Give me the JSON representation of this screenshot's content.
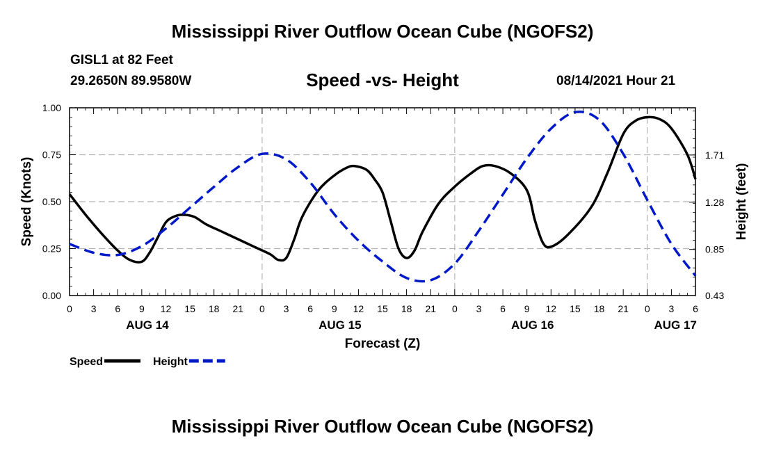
{
  "page": {
    "title_top": "Mississippi River Outflow Ocean Cube (NGOFS2)",
    "title_bottom": "Mississippi River Outflow Ocean Cube (NGOFS2)",
    "station": "GISL1 at 82 Feet",
    "coords": "29.2650N  89.9580W",
    "subtitle": "Speed -vs- Height",
    "datetime": "08/14/2021 Hour 21"
  },
  "chart_data": {
    "type": "line",
    "title": "Speed -vs- Height",
    "xlabel": "Forecast (Z)",
    "ylabel": "Speed (Knots)",
    "y2label": "Height (feet)",
    "xlim": [
      0,
      78
    ],
    "ylim": [
      0,
      1
    ],
    "y2lim": [
      0.43,
      2.14
    ],
    "x_tick_values": [
      0,
      3,
      6,
      9,
      12,
      15,
      18,
      21,
      24,
      27,
      30,
      33,
      36,
      39,
      42,
      45,
      48,
      51,
      54,
      57,
      60,
      63,
      66,
      69,
      72,
      75,
      78
    ],
    "x_tick_labels": [
      "0",
      "3",
      "6",
      "9",
      "12",
      "15",
      "18",
      "21",
      "0",
      "3",
      "6",
      "9",
      "12",
      "15",
      "18",
      "21",
      "0",
      "3",
      "6",
      "9",
      "12",
      "15",
      "18",
      "21",
      "0",
      "3",
      "6"
    ],
    "date_labels": [
      {
        "label": "AUG 14",
        "x": 9.7
      },
      {
        "label": "AUG 15",
        "x": 33.7
      },
      {
        "label": "AUG 16",
        "x": 57.7
      },
      {
        "label": "AUG 17",
        "x": 75.5
      }
    ],
    "y_ticks": [
      0.0,
      0.25,
      0.5,
      0.75,
      1.0
    ],
    "y_tick_labels": [
      "0.00",
      "0.25",
      "0.50",
      "0.75",
      "1.00"
    ],
    "y2_ticks": [
      0.43,
      0.85,
      1.28,
      1.71
    ],
    "y2_tick_labels": [
      "0.43",
      "0.85",
      "1.28",
      "1.71"
    ],
    "grid": true,
    "legend_position": "bottom-left",
    "series": [
      {
        "name": "Speed",
        "axis": "left",
        "color": "#000000",
        "dash": "solid",
        "x": [
          0,
          2,
          4,
          6,
          7.5,
          9,
          10,
          11,
          12,
          13,
          14,
          15.5,
          17,
          19,
          21,
          23,
          25,
          26,
          27,
          28,
          29,
          31,
          33,
          34.5,
          35.5,
          37,
          38,
          39,
          40,
          41,
          42,
          43,
          44,
          46,
          48,
          50,
          51.5,
          53,
          55,
          57,
          58,
          59,
          60,
          62,
          65,
          67,
          69,
          70.5,
          72,
          73.5,
          75,
          77,
          78
        ],
        "values": [
          0.54,
          0.43,
          0.33,
          0.24,
          0.19,
          0.18,
          0.23,
          0.31,
          0.39,
          0.42,
          0.43,
          0.42,
          0.38,
          0.34,
          0.3,
          0.26,
          0.22,
          0.19,
          0.2,
          0.3,
          0.42,
          0.56,
          0.64,
          0.68,
          0.69,
          0.67,
          0.62,
          0.55,
          0.4,
          0.25,
          0.2,
          0.24,
          0.34,
          0.49,
          0.58,
          0.65,
          0.69,
          0.69,
          0.65,
          0.56,
          0.4,
          0.28,
          0.26,
          0.32,
          0.47,
          0.65,
          0.86,
          0.93,
          0.95,
          0.94,
          0.89,
          0.75,
          0.62
        ]
      },
      {
        "name": "Height",
        "axis": "right",
        "color": "#0019c8",
        "dash": "dashed",
        "x": [
          0,
          3,
          6,
          9,
          12,
          15,
          18,
          21,
          24,
          27,
          30,
          33,
          36,
          39,
          42,
          45,
          48,
          51,
          54,
          57,
          60,
          63,
          66,
          69,
          72,
          75,
          78
        ],
        "values": [
          0.9,
          0.82,
          0.8,
          0.88,
          1.04,
          1.23,
          1.42,
          1.6,
          1.72,
          1.67,
          1.46,
          1.17,
          0.93,
          0.74,
          0.59,
          0.57,
          0.72,
          1.02,
          1.35,
          1.68,
          1.95,
          2.1,
          2.03,
          1.72,
          1.3,
          0.9,
          0.61
        ]
      }
    ]
  }
}
